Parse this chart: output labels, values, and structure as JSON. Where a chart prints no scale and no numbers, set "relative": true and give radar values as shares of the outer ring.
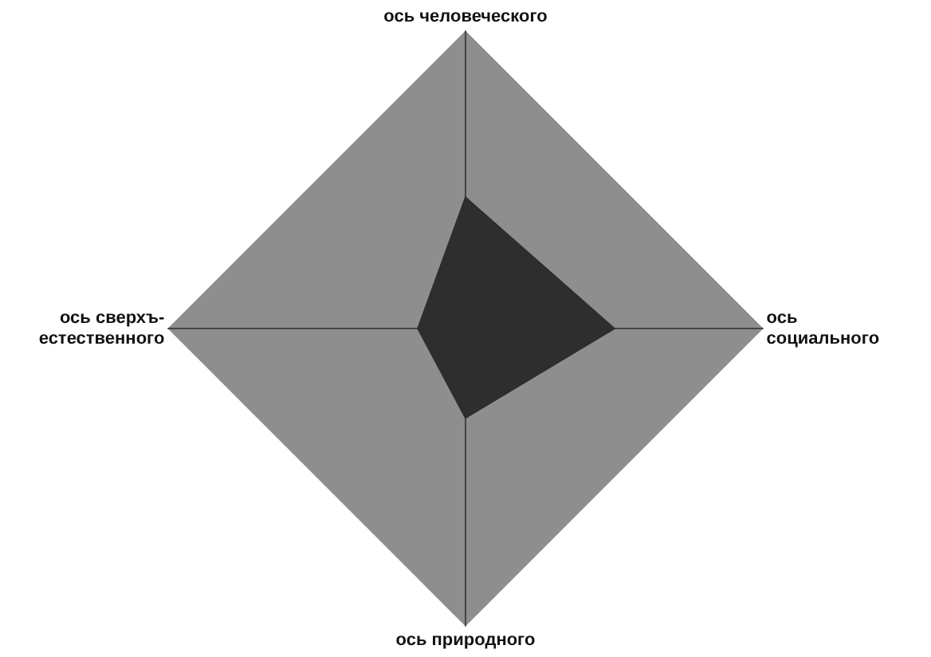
{
  "chart_data": {
    "type": "radar",
    "relative": true,
    "legend": false,
    "grid": true,
    "categories": [
      "ось человеческого",
      "ось\nсоциального",
      "ось природного",
      "ось сверхъ-\nестественного"
    ],
    "series": [
      {
        "color": "#2e2e2e",
        "values": [
          0.44,
          0.5,
          0.3,
          0.16
        ]
      }
    ]
  }
}
